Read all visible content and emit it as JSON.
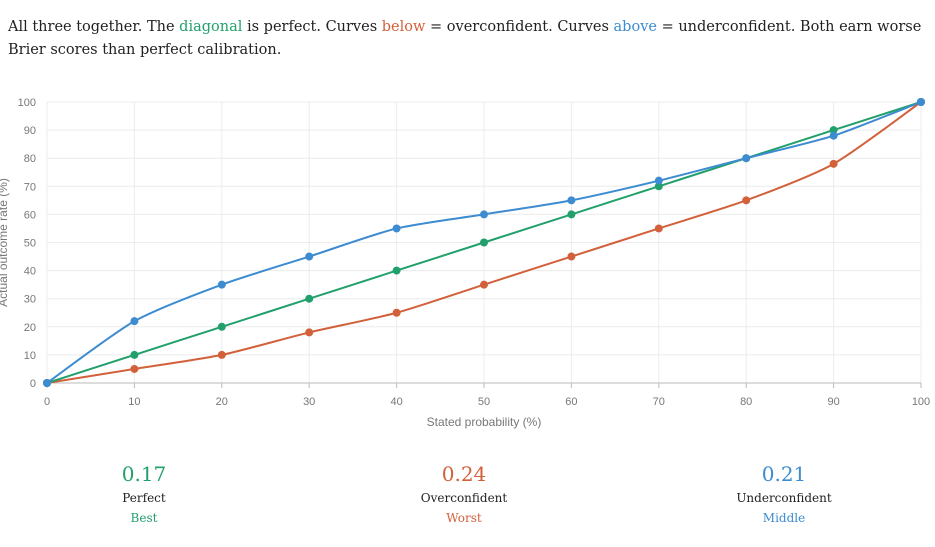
{
  "intro": {
    "part1": "All three together. The ",
    "diagonal": "diagonal",
    "part2": " is perfect. Curves ",
    "below": "below",
    "part3": " = overconfident. Curves ",
    "above": "above",
    "part4": " = underconfident. Both earn worse Brier scores than perfect calibration."
  },
  "colors": {
    "perfect": "#22a06b",
    "overconfident": "#d2603a",
    "underconfident": "#3d8bd1",
    "grid": "#ececec"
  },
  "chart_data": {
    "type": "line",
    "xlabel": "Stated probability (%)",
    "ylabel": "Actual outcome rate (%)",
    "xlim": [
      0,
      100
    ],
    "ylim": [
      0,
      100
    ],
    "xticks": [
      "0",
      "10",
      "20",
      "30",
      "40",
      "50",
      "60",
      "70",
      "80",
      "90",
      "100"
    ],
    "yticks": [
      "0",
      "10",
      "20",
      "30",
      "40",
      "50",
      "60",
      "70",
      "80",
      "90",
      "100"
    ],
    "grid": true,
    "x": [
      0,
      10,
      20,
      30,
      40,
      50,
      60,
      70,
      80,
      90,
      100
    ],
    "series": [
      {
        "key": "overconfident",
        "values": [
          0,
          5,
          10,
          18,
          25,
          35,
          45,
          55,
          65,
          78,
          100
        ]
      },
      {
        "key": "perfect",
        "values": [
          0,
          10,
          20,
          30,
          40,
          50,
          60,
          70,
          80,
          90,
          100
        ]
      },
      {
        "key": "underconfident",
        "values": [
          0,
          22,
          35,
          45,
          55,
          60,
          65,
          72,
          80,
          88,
          100
        ]
      }
    ]
  },
  "scores": [
    {
      "value": "0.17",
      "label": "Perfect",
      "rank": "Best",
      "color": "#22a06b"
    },
    {
      "value": "0.24",
      "label": "Overconfident",
      "rank": "Worst",
      "color": "#d2603a"
    },
    {
      "value": "0.21",
      "label": "Underconfident",
      "rank": "Middle",
      "color": "#3d8bd1"
    }
  ]
}
